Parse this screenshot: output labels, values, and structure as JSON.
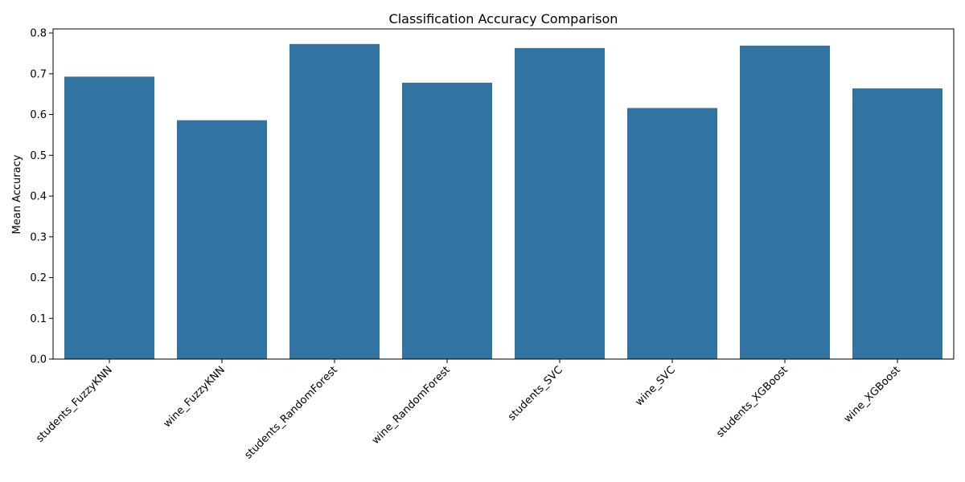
{
  "chart_data": {
    "type": "bar",
    "title": "Classification Accuracy Comparison",
    "xlabel": "",
    "ylabel": "Mean Accuracy",
    "categories": [
      "students_FuzzyKNN",
      "wine_FuzzyKNN",
      "students_RandomForest",
      "wine_RandomForest",
      "students_SVC",
      "wine_SVC",
      "students_XGBoost",
      "wine_XGBoost"
    ],
    "values": [
      0.693,
      0.586,
      0.773,
      0.678,
      0.763,
      0.616,
      0.769,
      0.664
    ],
    "ylim": [
      0,
      0.81
    ],
    "yticks": [
      "0.0",
      "0.1",
      "0.2",
      "0.3",
      "0.4",
      "0.5",
      "0.6",
      "0.7",
      "0.8"
    ],
    "grid": false,
    "bar_color": "#3274a1"
  }
}
